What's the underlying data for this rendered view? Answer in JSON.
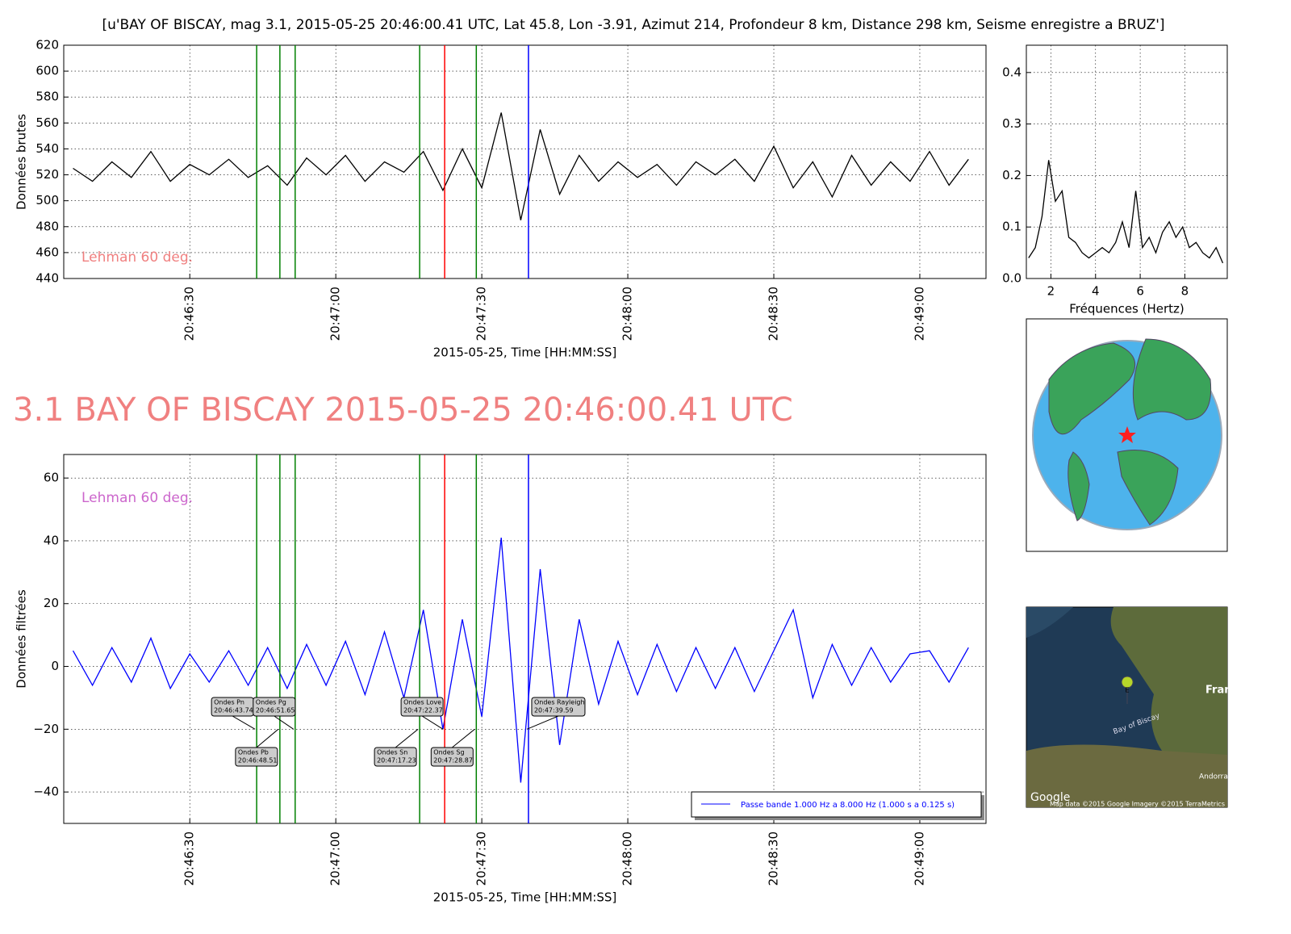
{
  "suptitle": "[u'BAY OF BISCAY, mag 3.1, 2015-05-25 20:46:00.41 UTC, Lat 45.8, Lon -3.91, Azimut 214, Profondeur 8 km, Distance   298 km, Seisme enregistre a BRUZ']",
  "heading": "3.1 BAY OF BISCAY 2015-05-25 20:46:00.41 UTC",
  "chart_data": [
    {
      "type": "line",
      "xlabel": "2015-05-25, Time [HH:MM:SS]",
      "ylabel": "Données brutes",
      "annotation": "Lehman 60 deg.",
      "annotation_color": "#f08080",
      "grid": true,
      "x": [
        "20:46:06",
        "20:46:10",
        "20:46:14",
        "20:46:18",
        "20:46:22",
        "20:46:26",
        "20:46:30",
        "20:46:34",
        "20:46:38",
        "20:46:42",
        "20:46:46",
        "20:46:50",
        "20:46:54",
        "20:46:58",
        "20:47:02",
        "20:47:06",
        "20:47:10",
        "20:47:14",
        "20:47:18",
        "20:47:22",
        "20:47:26",
        "20:47:30",
        "20:47:34",
        "20:47:38",
        "20:47:42",
        "20:47:46",
        "20:47:50",
        "20:47:54",
        "20:47:58",
        "20:48:02",
        "20:48:06",
        "20:48:10",
        "20:48:14",
        "20:48:18",
        "20:48:22",
        "20:48:26",
        "20:48:30",
        "20:48:34",
        "20:48:38",
        "20:48:42",
        "20:48:46",
        "20:48:50",
        "20:48:54",
        "20:48:58",
        "20:49:02",
        "20:49:06",
        "20:49:10"
      ],
      "series": [
        {
          "color": "#000000",
          "values": [
            525,
            515,
            530,
            518,
            538,
            515,
            528,
            520,
            532,
            518,
            527,
            512,
            533,
            520,
            535,
            515,
            530,
            522,
            538,
            508,
            540,
            510,
            568,
            485,
            555,
            505,
            535,
            515,
            530,
            518,
            528,
            512,
            530,
            520,
            532,
            515,
            542,
            510,
            530,
            503,
            535,
            512,
            530,
            515,
            538,
            512,
            532
          ]
        }
      ],
      "xlim": [
        "20:46:04.1",
        "20:49:13.6"
      ],
      "xticks": [
        "20:46:30",
        "20:47:00",
        "20:47:30",
        "20:48:00",
        "20:48:30",
        "20:49:00"
      ],
      "ylim": [
        440,
        620
      ],
      "yticks": [
        440,
        460,
        480,
        500,
        520,
        540,
        560,
        580,
        600,
        620
      ]
    },
    {
      "type": "line",
      "xlabel": "2015-05-25, Time [HH:MM:SS]",
      "ylabel": "Données filtrées",
      "annotation": "Lehman 60 deg.",
      "annotation_color": "#cc66cc",
      "grid": true,
      "legend": "lower right",
      "x": [
        "20:46:06",
        "20:46:10",
        "20:46:14",
        "20:46:18",
        "20:46:22",
        "20:46:26",
        "20:46:30",
        "20:46:34",
        "20:46:38",
        "20:46:42",
        "20:46:46",
        "20:46:50",
        "20:46:54",
        "20:46:58",
        "20:47:02",
        "20:47:06",
        "20:47:10",
        "20:47:14",
        "20:47:18",
        "20:47:22",
        "20:47:26",
        "20:47:30",
        "20:47:34",
        "20:47:38",
        "20:47:42",
        "20:47:46",
        "20:47:50",
        "20:47:54",
        "20:47:58",
        "20:48:02",
        "20:48:06",
        "20:48:10",
        "20:48:14",
        "20:48:18",
        "20:48:22",
        "20:48:26",
        "20:48:30",
        "20:48:34",
        "20:48:38",
        "20:48:42",
        "20:48:46",
        "20:48:50",
        "20:48:54",
        "20:48:58",
        "20:49:02",
        "20:49:06",
        "20:49:10"
      ],
      "series": [
        {
          "name": "Passe bande 1.000 Hz a 8.000 Hz (1.000 s a 0.125 s)",
          "color": "#0000ff",
          "values": [
            5,
            -6,
            6,
            -5,
            9,
            -7,
            4,
            -5,
            5,
            -6,
            6,
            -7,
            7,
            -6,
            8,
            -9,
            11,
            -10,
            18,
            -20,
            15,
            -16,
            41,
            -37,
            31,
            -25,
            15,
            -12,
            8,
            -9,
            7,
            -8,
            6,
            -7,
            6,
            -8,
            5,
            18,
            -10,
            7,
            -6,
            6,
            -5,
            4,
            5,
            -5,
            6
          ]
        }
      ],
      "phases": [
        {
          "label": "Ondes Pn",
          "time": "20:46:43.74",
          "color": "#008000"
        },
        {
          "label": "Ondes Pb",
          "time": "20:46:48.51",
          "color": "#008000"
        },
        {
          "label": "Ondes Pg",
          "time": "20:46:51.65",
          "color": "#008000"
        },
        {
          "label": "Ondes Sn",
          "time": "20:47:17.23",
          "color": "#008000"
        },
        {
          "label": "Ondes Love",
          "time": "20:47:22.37",
          "color": "#ff0000"
        },
        {
          "label": "Ondes Sg",
          "time": "20:47:28.87",
          "color": "#008000"
        },
        {
          "label": "Ondes Rayleigh",
          "time": "20:47:39.59",
          "color": "#0000ff"
        }
      ],
      "xlim": [
        "20:46:04.1",
        "20:49:13.6"
      ],
      "xticks": [
        "20:46:30",
        "20:47:00",
        "20:47:30",
        "20:48:00",
        "20:48:30",
        "20:49:00"
      ],
      "ylim": [
        -50,
        67.5
      ],
      "yticks": [
        {
          "value": -40,
          "label": "−40"
        },
        {
          "value": -20,
          "label": "−20"
        },
        0,
        20,
        40,
        60
      ]
    },
    {
      "type": "line",
      "xlabel": "Fréquences (Hertz)",
      "grid": true,
      "x": [
        1.0,
        1.3,
        1.6,
        1.9,
        2.2,
        2.5,
        2.8,
        3.1,
        3.4,
        3.7,
        4.0,
        4.3,
        4.6,
        4.9,
        5.2,
        5.5,
        5.8,
        6.1,
        6.4,
        6.7,
        7.0,
        7.3,
        7.6,
        7.9,
        8.2,
        8.5,
        8.8,
        9.1,
        9.4,
        9.7
      ],
      "series": [
        {
          "color": "#000000",
          "values": [
            0.04,
            0.06,
            0.12,
            0.23,
            0.15,
            0.17,
            0.08,
            0.07,
            0.05,
            0.04,
            0.05,
            0.06,
            0.05,
            0.07,
            0.11,
            0.06,
            0.17,
            0.06,
            0.08,
            0.05,
            0.09,
            0.11,
            0.08,
            0.1,
            0.06,
            0.07,
            0.05,
            0.04,
            0.06,
            0.03
          ]
        }
      ],
      "xlim": [
        0.9,
        9.9
      ],
      "xticks": [
        2,
        4,
        6,
        8
      ],
      "ylim": [
        0,
        0.453
      ],
      "yticks": [
        {
          "value": 0,
          "label": "0.0"
        },
        0.1,
        0.2,
        0.3,
        0.4
      ]
    }
  ],
  "map": {
    "country": "Fran",
    "sea": "Bay of Biscay",
    "town": "Andorra",
    "marker": "E",
    "logo": "Google",
    "credits": "Map data ©2015 Google  Imagery ©2015 TerraMetrics"
  }
}
